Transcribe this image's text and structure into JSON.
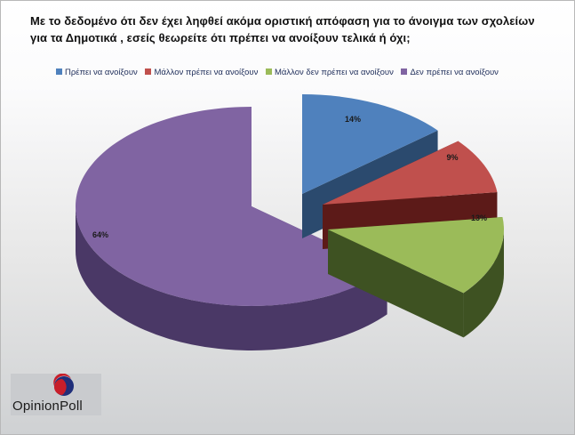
{
  "title_lines": [
    "Με το δεδομένο  ότι δεν  έχει ληφθεί ακόμα οριστική απόφαση  για το άνοιγμα των σχολείων",
    "για τα Δημοτικά , εσείς  θεωρείτε  ότι πρέπει  να ανοίξουν τελικά  ή  όχι;"
  ],
  "logo": {
    "text": "OpinionPoll"
  },
  "chart_data": {
    "type": "pie",
    "style": "3d-exploded",
    "legend_position": "top",
    "categories": [
      "Πρέπει να ανοίξουν",
      "Μάλλον πρέπει να ανοίξουν",
      "Μάλλον δεν πρέπει να ανοίξουν",
      "Δεν πρέπει να ανοίξουν"
    ],
    "values": [
      14,
      9,
      13,
      64
    ],
    "labels": [
      "14%",
      "9%",
      "13%",
      "64%"
    ],
    "colors": [
      "#4f81bd",
      "#c0504d",
      "#9bbb59",
      "#8064a2"
    ],
    "side_colors": [
      "#2b4a6e",
      "#5c1a18",
      "#3e5222",
      "#4a3866"
    ]
  }
}
